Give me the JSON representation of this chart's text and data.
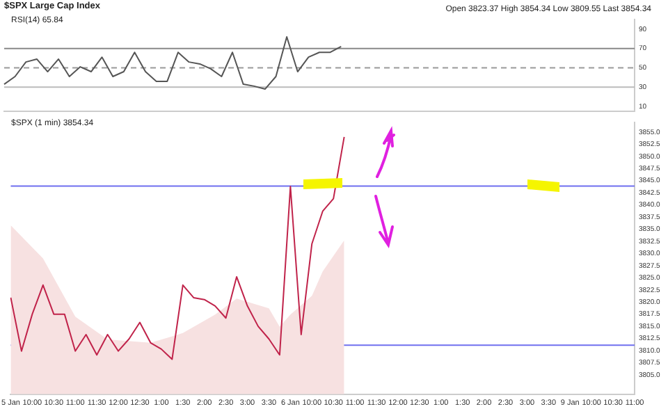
{
  "chart_data": [
    {
      "type": "line",
      "title": "$SPX Large Cap Index",
      "subtitle": "Open 3823.37 High 3854.34 Low 3809.55 Last 3854.34",
      "annotations": [
        "RSI(14) 65.84"
      ],
      "categories": [
        null,
        null,
        null,
        null,
        null,
        null,
        null,
        null,
        null,
        null,
        null,
        null,
        null,
        null,
        null,
        null,
        null,
        null,
        null,
        null,
        null,
        null,
        null,
        null,
        null,
        null,
        null,
        null,
        null,
        null,
        null,
        null,
        null,
        null,
        null,
        null,
        null,
        null,
        null,
        null,
        null,
        null,
        null,
        null,
        null,
        null,
        null,
        null,
        null,
        null,
        null,
        null,
        null,
        null,
        null,
        null,
        null,
        null,
        null
      ],
      "series": [
        {
          "color": "#555555",
          "values": [
            33,
            41,
            56,
            59,
            46,
            59,
            41,
            51,
            46,
            61,
            41,
            46,
            66,
            46,
            36,
            36,
            66,
            56,
            54,
            49,
            41,
            66,
            33,
            31,
            28,
            41,
            82,
            46,
            61,
            66,
            66,
            72,
            null,
            null,
            null,
            null,
            null,
            null,
            null,
            null,
            null,
            null,
            null,
            null,
            null,
            null,
            null,
            null,
            null,
            null,
            null,
            null,
            null,
            null,
            null,
            null,
            null,
            null,
            null
          ]
        }
      ],
      "ylim": [
        5,
        100
      ],
      "yticks": [
        10,
        30,
        50,
        70,
        90
      ],
      "tick_labels": "y",
      "ref_lines": [
        {
          "axis": "y",
          "value": 70,
          "color": "#888888",
          "line_style": "solid"
        },
        {
          "axis": "y",
          "value": 50,
          "color": "#999999",
          "line_style": "dashed"
        },
        {
          "axis": "y",
          "value": 30,
          "color": "#bbbbbb",
          "line_style": "solid"
        }
      ]
    },
    {
      "type": "line",
      "annotations": [
        "$SPX (1 min) 3854.34"
      ],
      "categories": [
        "5 Jan",
        null,
        "10:00",
        null,
        "10:30",
        null,
        "11:00",
        null,
        "11:30",
        null,
        "12:00",
        null,
        "12:30",
        null,
        "1:00",
        null,
        "1:30",
        null,
        "2:00",
        null,
        "2:30",
        null,
        "3:00",
        null,
        "3:30",
        null,
        "6 Jan",
        null,
        "10:00",
        null,
        "10:30",
        null,
        "11:00",
        null,
        "11:30",
        null,
        "12:00",
        null,
        "12:30",
        null,
        "1:00",
        null,
        "1:30",
        null,
        "2:00",
        null,
        "2:30",
        null,
        "3:00",
        null,
        "3:30",
        null,
        "9 Jan",
        null,
        "10:00",
        null,
        "10:30",
        null,
        "11:00"
      ],
      "series": [
        {
          "type": "area",
          "color": "#f7e1e1",
          "values": [
            3835.8,
            null,
            null,
            3829,
            null,
            null,
            3817,
            null,
            null,
            3812.3,
            null,
            null,
            null,
            3811.6,
            null,
            null,
            3813.6,
            null,
            null,
            3817.4,
            null,
            3820.7,
            null,
            null,
            3818.7,
            3814.9,
            3817.4,
            null,
            3821.3,
            3826.3,
            null,
            3832.7,
            null,
            null,
            null,
            null,
            null,
            null,
            null,
            null,
            null,
            null,
            null,
            null,
            null,
            null,
            null,
            null,
            null,
            null,
            null,
            null,
            null,
            null,
            null,
            null,
            null,
            null,
            null
          ]
        },
        {
          "color": "#c0234a",
          "values": [
            3820.9,
            3809.9,
            3817.5,
            3823.5,
            3817.5,
            3817.5,
            3809.9,
            3813.3,
            3809.1,
            3813.3,
            3809.9,
            3812.4,
            3815.8,
            3811.6,
            3810.3,
            3808.2,
            3823.5,
            3820.9,
            3820.5,
            3819.2,
            3816.7,
            3825.2,
            3819.2,
            3815,
            3812.4,
            3809.1,
            3843.8,
            3813.3,
            3832,
            3838.7,
            3841.3,
            3854,
            null,
            null,
            null,
            null,
            null,
            null,
            null,
            null,
            null,
            null,
            null,
            null,
            null,
            null,
            null,
            null,
            null,
            null,
            null,
            null,
            null,
            null,
            null,
            null,
            null,
            null,
            null
          ]
        }
      ],
      "ylim": [
        3801,
        3857
      ],
      "yticks": [
        {
          "value": 3805,
          "label": "3805.0"
        },
        {
          "value": 3807.5,
          "label": "3807.5"
        },
        {
          "value": 3810,
          "label": "3810.0"
        },
        {
          "value": 3812.5,
          "label": "3812.5"
        },
        {
          "value": 3815,
          "label": "3815.0"
        },
        {
          "value": 3817.5,
          "label": "3817.5"
        },
        {
          "value": 3820,
          "label": "3820.0"
        },
        {
          "value": 3822.5,
          "label": "3822.5"
        },
        {
          "value": 3825,
          "label": "3825.0"
        },
        {
          "value": 3827.5,
          "label": "3827.5"
        },
        {
          "value": 3830,
          "label": "3830.0"
        },
        {
          "value": 3832.5,
          "label": "3832.5"
        },
        {
          "value": 3835,
          "label": "3835.0"
        },
        {
          "value": 3837.5,
          "label": "3837.5"
        },
        {
          "value": 3840,
          "label": "3840.0"
        },
        {
          "value": 3842.5,
          "label": "3842.5"
        },
        {
          "value": 3845,
          "label": "3845.0"
        },
        {
          "value": 3847.5,
          "label": "3847.5"
        },
        {
          "value": 3850,
          "label": "3850.0"
        },
        {
          "value": 3852.5,
          "label": "3852.5"
        },
        {
          "value": 3855,
          "label": "3855.0"
        }
      ],
      "ref_lines": [
        {
          "axis": "y",
          "value": 3843.9,
          "color": "#6f6fef",
          "line_style": "solid"
        },
        {
          "axis": "y",
          "value": 3811.1,
          "color": "#6f6fef",
          "line_style": "solid"
        }
      ]
    }
  ]
}
